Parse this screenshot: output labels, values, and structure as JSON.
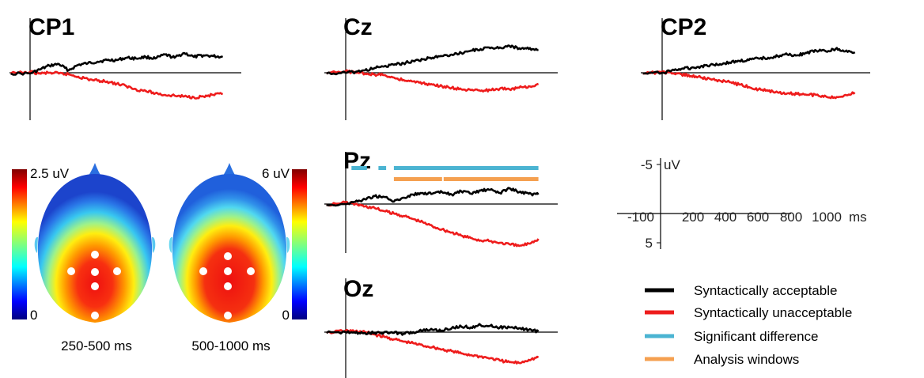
{
  "chart_data": {
    "type": "line",
    "x_unit": "ms",
    "y_unit": "uV",
    "xlim": [
      -100,
      1000
    ],
    "ylim": [
      5,
      -5
    ],
    "y_axis_negative_up": true,
    "scale_axis": {
      "x_ticks": [
        "-100",
        "200",
        "400",
        "600",
        "800",
        "1000"
      ],
      "x_unit_label": "ms",
      "y_ticks": [
        "-5",
        "5"
      ],
      "y_unit_label": "uV"
    },
    "panels": [
      {
        "electrode": "CP1",
        "series": [
          {
            "name": "Syntactically acceptable",
            "color": "#000000",
            "x": [
              -100,
              0,
              50,
              100,
              150,
              200,
              250,
              300,
              350,
              400,
              450,
              500,
              550,
              600,
              650,
              700,
              750,
              800,
              850,
              900,
              950,
              1000
            ],
            "y": [
              0.1,
              0.1,
              -0.4,
              -0.9,
              -1.1,
              -0.3,
              -1.0,
              -1.2,
              -1.4,
              -1.6,
              -1.6,
              -1.9,
              -1.8,
              -2.0,
              -1.8,
              -2.3,
              -1.9,
              -2.5,
              -2.0,
              -2.2,
              -2.1,
              -2.0
            ]
          },
          {
            "name": "Syntactically unacceptable",
            "color": "#ee1c1c",
            "x": [
              -100,
              0,
              50,
              100,
              150,
              200,
              250,
              300,
              350,
              400,
              450,
              500,
              550,
              600,
              650,
              700,
              750,
              800,
              850,
              900,
              950,
              1000
            ],
            "y": [
              0.1,
              -0.1,
              0.1,
              0.0,
              0.1,
              0.2,
              0.5,
              0.8,
              1.0,
              1.1,
              1.4,
              1.7,
              2.1,
              2.3,
              2.6,
              2.8,
              2.9,
              3.0,
              3.1,
              3.0,
              2.8,
              2.7
            ]
          }
        ]
      },
      {
        "electrode": "Cz",
        "series": [
          {
            "name": "Syntactically acceptable",
            "color": "#000000",
            "x": [
              -100,
              0,
              50,
              100,
              150,
              200,
              250,
              300,
              350,
              400,
              450,
              500,
              550,
              600,
              650,
              700,
              750,
              800,
              850,
              900,
              950,
              1000
            ],
            "y": [
              0.1,
              0.0,
              -0.1,
              -0.3,
              -0.6,
              -0.8,
              -1.0,
              -1.2,
              -1.5,
              -1.7,
              -1.9,
              -2.1,
              -2.3,
              -2.5,
              -2.8,
              -3.0,
              -3.1,
              -3.2,
              -3.4,
              -3.1,
              -3.0,
              -2.9
            ]
          },
          {
            "name": "Syntactically unacceptable",
            "color": "#ee1c1c",
            "x": [
              -100,
              0,
              50,
              100,
              150,
              200,
              250,
              300,
              350,
              400,
              450,
              500,
              550,
              600,
              650,
              700,
              750,
              800,
              850,
              900,
              950,
              1000
            ],
            "y": [
              0.1,
              -0.2,
              0.0,
              0.1,
              0.2,
              0.3,
              0.6,
              0.9,
              1.1,
              1.3,
              1.5,
              1.7,
              1.9,
              2.1,
              2.2,
              2.3,
              2.2,
              2.0,
              2.1,
              1.9,
              1.7,
              1.4
            ]
          }
        ]
      },
      {
        "electrode": "CP2",
        "series": [
          {
            "name": "Syntactically acceptable",
            "color": "#000000",
            "x": [
              -100,
              0,
              50,
              100,
              150,
              200,
              250,
              300,
              350,
              400,
              450,
              500,
              550,
              600,
              650,
              700,
              750,
              800,
              850,
              900,
              950,
              1000
            ],
            "y": [
              0.1,
              0.0,
              -0.3,
              -0.5,
              -0.6,
              -0.8,
              -1.0,
              -1.1,
              -1.3,
              -1.5,
              -1.6,
              -1.8,
              -1.9,
              -2.1,
              -2.3,
              -2.2,
              -2.5,
              -2.8,
              -2.7,
              -3.0,
              -2.7,
              -2.6
            ]
          },
          {
            "name": "Syntactically unacceptable",
            "color": "#ee1c1c",
            "x": [
              -100,
              0,
              50,
              100,
              150,
              200,
              250,
              300,
              350,
              400,
              450,
              500,
              550,
              600,
              650,
              700,
              750,
              800,
              850,
              900,
              950,
              1000
            ],
            "y": [
              0.1,
              -0.1,
              0.1,
              0.2,
              0.4,
              0.6,
              0.8,
              1.0,
              1.2,
              1.5,
              1.8,
              2.1,
              2.3,
              2.5,
              2.6,
              2.7,
              2.8,
              2.8,
              3.0,
              3.2,
              2.8,
              2.5
            ]
          }
        ]
      },
      {
        "electrode": "Pz",
        "series": [
          {
            "name": "Syntactically acceptable",
            "color": "#000000",
            "x": [
              -100,
              0,
              50,
              100,
              150,
              200,
              250,
              300,
              350,
              400,
              450,
              500,
              550,
              600,
              650,
              700,
              750,
              800,
              850,
              900,
              950,
              1000
            ],
            "y": [
              0.1,
              0.0,
              -0.3,
              -0.6,
              -1.0,
              -0.9,
              -0.3,
              -0.8,
              -1.2,
              -1.4,
              -1.3,
              -1.5,
              -1.2,
              -1.6,
              -1.3,
              -1.7,
              -1.8,
              -1.4,
              -2.0,
              -1.5,
              -1.3,
              -1.2
            ]
          },
          {
            "name": "Syntactically unacceptable",
            "color": "#ee1c1c",
            "x": [
              -100,
              0,
              50,
              100,
              150,
              200,
              250,
              300,
              350,
              400,
              450,
              500,
              550,
              600,
              650,
              700,
              750,
              800,
              850,
              900,
              950,
              1000
            ],
            "y": [
              0.1,
              -0.2,
              0.0,
              0.3,
              0.5,
              0.9,
              1.2,
              1.5,
              1.9,
              2.3,
              2.8,
              3.2,
              3.6,
              4.0,
              4.3,
              4.6,
              4.7,
              4.9,
              5.1,
              5.3,
              5.0,
              4.4
            ]
          }
        ]
      },
      {
        "electrode": "Oz",
        "series": [
          {
            "name": "Syntactically acceptable",
            "color": "#000000",
            "x": [
              -100,
              0,
              50,
              100,
              150,
              200,
              250,
              300,
              350,
              400,
              450,
              500,
              550,
              600,
              650,
              700,
              750,
              800,
              850,
              900,
              950,
              1000
            ],
            "y": [
              0.1,
              0.0,
              0.1,
              0.1,
              0.1,
              0.0,
              0.1,
              0.2,
              0.0,
              -0.2,
              -0.3,
              -0.2,
              -0.5,
              -0.7,
              -0.6,
              -0.9,
              -0.8,
              -0.6,
              -0.6,
              -0.5,
              -0.3,
              -0.1
            ]
          },
          {
            "name": "Syntactically unacceptable",
            "color": "#ee1c1c",
            "x": [
              -100,
              0,
              50,
              100,
              150,
              200,
              250,
              300,
              350,
              400,
              450,
              500,
              550,
              600,
              650,
              700,
              750,
              800,
              850,
              900,
              950,
              1000
            ],
            "y": [
              0.1,
              -0.2,
              -0.1,
              0.0,
              0.3,
              0.6,
              0.9,
              1.2,
              1.4,
              1.7,
              1.9,
              2.2,
              2.4,
              2.7,
              2.9,
              3.1,
              3.3,
              3.6,
              3.8,
              3.9,
              3.5,
              3.2
            ]
          }
        ]
      }
    ],
    "significant_difference": {
      "color": "#4bb4d2",
      "segments": [
        [
          30,
          110
        ],
        [
          170,
          210
        ],
        [
          250,
          1000
        ]
      ]
    },
    "analysis_windows": {
      "color": "#f5a050",
      "segments": [
        [
          250,
          500
        ],
        [
          500,
          1000
        ]
      ]
    },
    "topomaps": [
      {
        "label": "250-500 ms",
        "scale_max": "2.5 uV",
        "scale_min": "0"
      },
      {
        "label": "500-1000 ms",
        "scale_max": "6 uV",
        "scale_min": "0"
      }
    ],
    "legend": [
      {
        "label": "Syntactically acceptable",
        "color": "#000000"
      },
      {
        "label": "Syntactically unacceptable",
        "color": "#ee1c1c"
      },
      {
        "label": "Significant difference",
        "color": "#4bb4d2"
      },
      {
        "label": "Analysis windows",
        "color": "#f5a050"
      }
    ]
  }
}
